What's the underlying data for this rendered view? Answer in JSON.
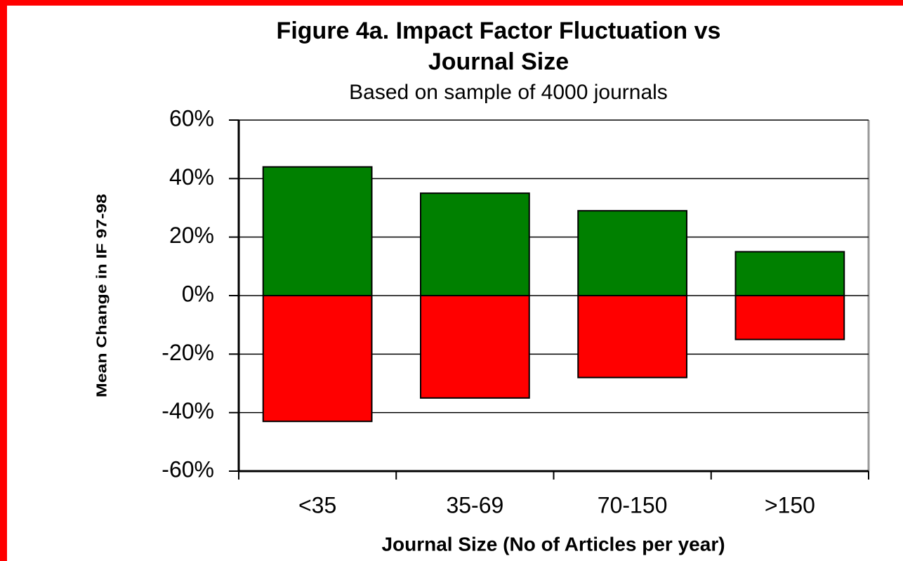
{
  "chart_data": {
    "type": "bar",
    "title": "Figure 4a. Impact Factor Fluctuation vs Journal Size",
    "subtitle": "Based on sample of 4000 journals",
    "x_label": "Journal Size (No of Articles per year)",
    "y_label": "Mean Change in IF 97-98",
    "categories": [
      "<35",
      "35-69",
      "70-150",
      ">150"
    ],
    "series": [
      {
        "color": "#008000",
        "values": [
          44,
          35,
          29,
          15
        ]
      },
      {
        "color": "#ff0000",
        "values": [
          -43,
          -35,
          -28,
          -15
        ]
      }
    ],
    "ylim": [
      -60,
      60
    ],
    "yticks": [
      {
        "value": -60,
        "label": "-60%"
      },
      {
        "value": -40,
        "label": "-40%"
      },
      {
        "value": -20,
        "label": "-20%"
      },
      {
        "value": 0,
        "label": "0%"
      },
      {
        "value": 20,
        "label": "20%"
      },
      {
        "value": 40,
        "label": "40%"
      },
      {
        "value": 60,
        "label": "60%"
      }
    ],
    "grid": true
  }
}
